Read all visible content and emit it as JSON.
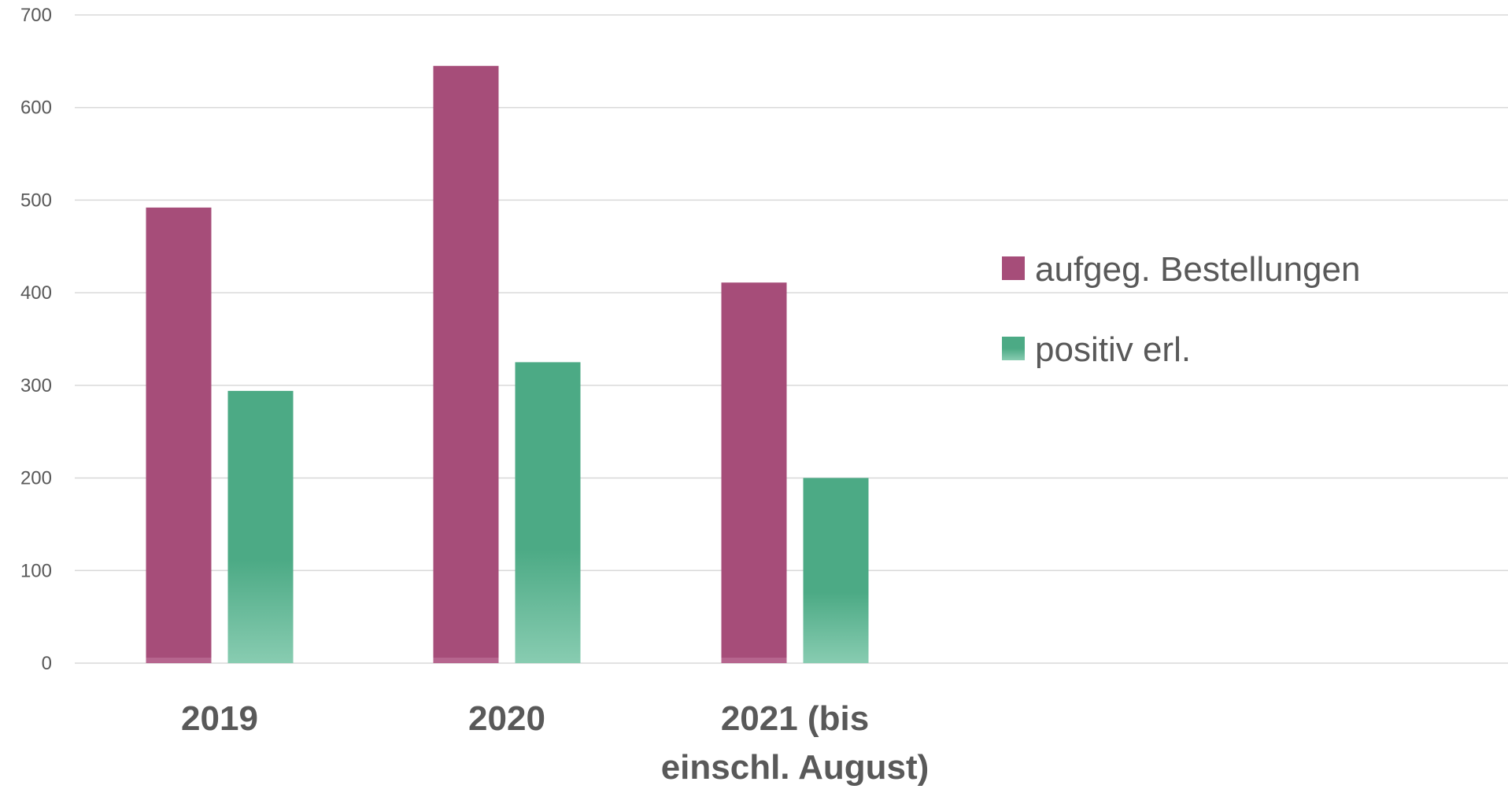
{
  "chart_data": {
    "type": "bar",
    "title": "",
    "xlabel": "",
    "ylabel": "",
    "categories": [
      [
        "2019"
      ],
      [
        "2020"
      ],
      [
        "2021 (bis",
        "einschl. August)"
      ]
    ],
    "series": [
      {
        "name": "aufgeg. Bestellungen",
        "values": [
          492,
          645,
          411
        ],
        "color": "#a64d79"
      },
      {
        "name": "positiv erl.",
        "values": [
          294,
          325,
          200
        ],
        "color": "#4caa85"
      }
    ],
    "ylim": [
      0,
      700
    ],
    "yticks": [
      "0",
      "100",
      "200",
      "300",
      "400",
      "500",
      "600",
      "700"
    ],
    "grid": true,
    "legend_position": "right",
    "colors": {
      "gridline": "#d9d9d9",
      "text": "#595959"
    }
  }
}
